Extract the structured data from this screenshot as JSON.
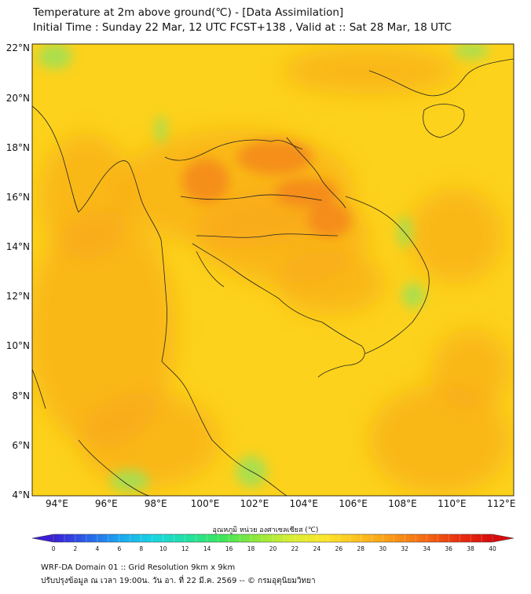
{
  "title": {
    "line1": "Temperature at 2m above ground(℃) - [Data Assimilation]",
    "line2": "Initial Time : Sunday 22 Mar, 12 UTC FCST+138 , Valid at :: Sat 28 Mar, 18 UTC"
  },
  "axes": {
    "y_ticks": [
      "22°N",
      "20°N",
      "18°N",
      "16°N",
      "14°N",
      "12°N",
      "10°N",
      "8°N",
      "6°N",
      "4°N"
    ],
    "x_ticks": [
      "94°E",
      "96°E",
      "98°E",
      "100°E",
      "102°E",
      "104°E",
      "106°E",
      "108°E",
      "110°E",
      "112°E"
    ],
    "lat_range": [
      4,
      22.2
    ],
    "lon_range": [
      93,
      112.5
    ]
  },
  "colorbar": {
    "label": "อุณหภูมิ หน่วย องศาเซลเซียส (℃)",
    "ticks": [
      "0",
      "2",
      "4",
      "6",
      "8",
      "10",
      "12",
      "14",
      "16",
      "18",
      "20",
      "22",
      "24",
      "26",
      "28",
      "30",
      "32",
      "34",
      "36",
      "38",
      "40"
    ],
    "range": [
      0,
      40
    ],
    "colors": [
      "#3a1fd6",
      "#2a62e8",
      "#1aa9f0",
      "#19d6e0",
      "#21e2a0",
      "#3ee55a",
      "#8ee83a",
      "#d6ee35",
      "#fbe62a",
      "#fcc21e",
      "#f99a18",
      "#f46a12",
      "#e8300e",
      "#d90b0b"
    ]
  },
  "footer": {
    "line1": "WRF-DA Domain 01 :: Grid Resolution 9km x 9km",
    "line2": "ปรับปรุงข้อมูล ณ เวลา 19:00น. วัน อา. ที่ 22 มี.ค. 2569 -- © กรมอุตุนิยมวิทยา"
  },
  "colors": {
    "base_field": "#fcd21c",
    "warm_field": "#f8a21a",
    "hot_field": "#f3821a",
    "cool_field": "#9ee055",
    "coast": "#222222"
  }
}
